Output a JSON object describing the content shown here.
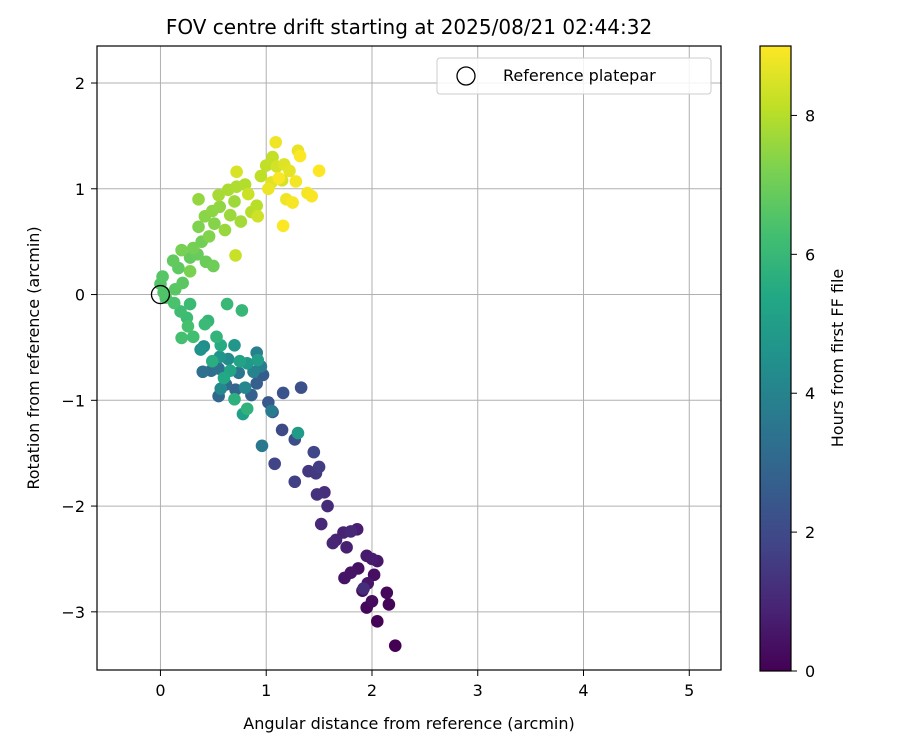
{
  "chart_data": {
    "type": "scatter",
    "title": "FOV centre drift starting at 2025/08/21 02:44:32",
    "xlabel": "Angular distance from reference (arcmin)",
    "ylabel": "Rotation from reference (arcmin)",
    "xlim": [
      -0.6,
      5.3
    ],
    "ylim": [
      -3.55,
      2.35
    ],
    "xticks": [
      "0",
      "1",
      "2",
      "3",
      "4",
      "5"
    ],
    "yticks": [
      "−3",
      "−2",
      "−1",
      "0",
      "1",
      "2"
    ],
    "grid": true,
    "legend": {
      "placement": "top-right",
      "entries": [
        "Reference platepar"
      ]
    },
    "reference_point": {
      "x": 0,
      "y": 0
    },
    "colorbar": {
      "label": "Hours from first FF file",
      "range": [
        0,
        9
      ],
      "ticks": [
        "0",
        "2",
        "4",
        "6",
        "8"
      ],
      "colormap": "viridis"
    },
    "series": [
      {
        "points": [
          [
            2.22,
            -3.32,
            0.0
          ],
          [
            2.05,
            -3.09,
            0.05
          ],
          [
            2.16,
            -2.93,
            0.1
          ],
          [
            1.95,
            -2.96,
            0.15
          ],
          [
            2.14,
            -2.82,
            0.2
          ],
          [
            2.0,
            -2.9,
            0.25
          ],
          [
            1.91,
            -2.8,
            0.3
          ],
          [
            2.02,
            -2.65,
            0.35
          ],
          [
            1.87,
            -2.59,
            0.4
          ],
          [
            1.8,
            -2.63,
            0.45
          ],
          [
            1.74,
            -2.68,
            0.5
          ],
          [
            1.96,
            -2.73,
            0.55
          ],
          [
            2.05,
            -2.52,
            0.6
          ],
          [
            1.95,
            -2.47,
            0.65
          ],
          [
            2.0,
            -2.5,
            0.7
          ],
          [
            1.86,
            -2.22,
            0.75
          ],
          [
            1.76,
            -2.39,
            0.8
          ],
          [
            1.73,
            -2.25,
            0.85
          ],
          [
            1.66,
            -2.32,
            0.9
          ],
          [
            1.63,
            -2.35,
            0.95
          ],
          [
            1.8,
            -2.24,
            1.0
          ],
          [
            1.52,
            -2.17,
            1.05
          ],
          [
            1.58,
            -2.0,
            1.1
          ],
          [
            1.92,
            -2.78,
            1.15
          ],
          [
            1.55,
            -1.87,
            1.2
          ],
          [
            1.48,
            -1.89,
            1.3
          ],
          [
            1.4,
            -1.67,
            1.4
          ],
          [
            1.47,
            -1.69,
            1.5
          ],
          [
            1.5,
            -1.63,
            1.6
          ],
          [
            1.27,
            -1.77,
            1.7
          ],
          [
            1.08,
            -1.6,
            1.8
          ],
          [
            1.45,
            -1.49,
            1.9
          ],
          [
            1.15,
            -1.28,
            2.0
          ],
          [
            1.27,
            -1.37,
            2.1
          ],
          [
            1.33,
            -0.88,
            2.2
          ],
          [
            1.16,
            -0.93,
            2.3
          ],
          [
            1.06,
            -1.11,
            2.4
          ],
          [
            1.02,
            -1.02,
            2.5
          ],
          [
            0.97,
            -0.76,
            2.6
          ],
          [
            0.91,
            -0.84,
            2.7
          ],
          [
            0.86,
            -0.95,
            2.8
          ],
          [
            0.71,
            -0.9,
            2.9
          ],
          [
            0.55,
            -0.96,
            3.0
          ],
          [
            0.62,
            -0.85,
            3.1
          ],
          [
            0.48,
            -0.72,
            3.2
          ],
          [
            0.4,
            -0.73,
            3.3
          ],
          [
            0.55,
            -0.7,
            3.4
          ],
          [
            0.74,
            -0.74,
            3.5
          ],
          [
            0.96,
            -1.43,
            3.6
          ],
          [
            1.05,
            -1.1,
            3.7
          ],
          [
            0.95,
            -0.68,
            3.8
          ],
          [
            0.91,
            -0.55,
            3.9
          ],
          [
            0.88,
            -0.73,
            4.0
          ],
          [
            0.8,
            -0.88,
            4.1
          ],
          [
            0.57,
            -0.89,
            4.2
          ],
          [
            0.64,
            -0.61,
            4.3
          ],
          [
            0.41,
            -0.49,
            4.4
          ],
          [
            0.38,
            -0.52,
            4.5
          ],
          [
            0.56,
            -0.59,
            4.6
          ],
          [
            0.7,
            -0.48,
            4.7
          ],
          [
            0.82,
            -0.65,
            4.8
          ],
          [
            1.3,
            -1.31,
            4.9
          ],
          [
            0.92,
            -0.62,
            5.0
          ],
          [
            0.78,
            -1.13,
            5.1
          ],
          [
            0.75,
            -0.63,
            5.2
          ],
          [
            0.66,
            -0.72,
            5.3
          ],
          [
            0.6,
            -0.79,
            5.4
          ],
          [
            0.57,
            -0.48,
            5.5
          ],
          [
            0.49,
            -0.63,
            5.6
          ],
          [
            0.7,
            -0.99,
            5.7
          ],
          [
            0.82,
            -1.08,
            5.8
          ],
          [
            0.53,
            -0.4,
            5.85
          ],
          [
            0.45,
            -0.25,
            5.9
          ],
          [
            0.77,
            -0.15,
            5.95
          ],
          [
            0.63,
            -0.09,
            6.0
          ],
          [
            0.42,
            -0.28,
            6.05
          ],
          [
            0.28,
            -0.09,
            6.1
          ],
          [
            0.25,
            -0.22,
            6.15
          ],
          [
            0.19,
            -0.16,
            6.2
          ],
          [
            0.31,
            -0.4,
            6.25
          ],
          [
            0.2,
            -0.41,
            6.3
          ],
          [
            0.26,
            -0.3,
            6.35
          ],
          [
            0.13,
            -0.08,
            6.4
          ],
          [
            0.05,
            -0.03,
            6.45
          ],
          [
            0.03,
            0.02,
            6.5
          ],
          [
            0.0,
            0.1,
            6.55
          ],
          [
            0.02,
            0.17,
            6.6
          ],
          [
            0.14,
            0.05,
            6.65
          ],
          [
            0.21,
            0.11,
            6.7
          ],
          [
            0.17,
            0.25,
            6.75
          ],
          [
            0.12,
            0.32,
            6.8
          ],
          [
            0.28,
            0.35,
            6.85
          ],
          [
            0.35,
            0.38,
            6.9
          ],
          [
            0.43,
            0.31,
            6.95
          ],
          [
            0.5,
            0.27,
            7.0
          ],
          [
            0.39,
            0.5,
            7.05
          ],
          [
            0.31,
            0.44,
            7.1
          ],
          [
            0.2,
            0.42,
            7.15
          ],
          [
            0.28,
            0.22,
            7.2
          ],
          [
            0.36,
            0.64,
            7.25
          ],
          [
            0.46,
            0.55,
            7.3
          ],
          [
            0.51,
            0.67,
            7.35
          ],
          [
            0.42,
            0.74,
            7.4
          ],
          [
            0.49,
            0.79,
            7.45
          ],
          [
            0.56,
            0.83,
            7.5
          ],
          [
            0.36,
            0.9,
            7.55
          ],
          [
            0.61,
            0.61,
            7.6
          ],
          [
            0.66,
            0.75,
            7.65
          ],
          [
            0.7,
            0.88,
            7.7
          ],
          [
            0.76,
            0.69,
            7.75
          ],
          [
            0.55,
            0.94,
            7.8
          ],
          [
            0.64,
            0.99,
            7.85
          ],
          [
            0.72,
            1.02,
            7.9
          ],
          [
            0.8,
            1.04,
            7.95
          ],
          [
            0.86,
            0.78,
            8.0
          ],
          [
            0.91,
            0.84,
            8.05
          ],
          [
            0.95,
            1.12,
            8.1
          ],
          [
            1.0,
            1.22,
            8.15
          ],
          [
            1.06,
            1.3,
            8.2
          ],
          [
            0.71,
            0.37,
            8.25
          ],
          [
            0.83,
            0.95,
            8.3
          ],
          [
            0.92,
            0.74,
            8.35
          ],
          [
            1.1,
            1.21,
            8.4
          ],
          [
            1.15,
            1.08,
            8.45
          ],
          [
            0.72,
            1.16,
            8.5
          ],
          [
            1.17,
            1.23,
            8.55
          ],
          [
            1.05,
            1.06,
            8.6
          ],
          [
            1.22,
            1.17,
            8.65
          ],
          [
            1.3,
            1.36,
            8.7
          ],
          [
            1.02,
            1.0,
            8.75
          ],
          [
            1.09,
            1.44,
            8.8
          ],
          [
            1.19,
            0.9,
            8.82
          ],
          [
            1.28,
            1.07,
            8.85
          ],
          [
            1.39,
            0.96,
            8.88
          ],
          [
            1.25,
            0.87,
            8.9
          ],
          [
            1.43,
            0.93,
            8.93
          ],
          [
            1.12,
            1.1,
            8.95
          ],
          [
            1.32,
            1.31,
            8.97
          ],
          [
            1.16,
            0.65,
            8.99
          ],
          [
            1.5,
            1.17,
            9.0
          ]
        ]
      }
    ]
  }
}
